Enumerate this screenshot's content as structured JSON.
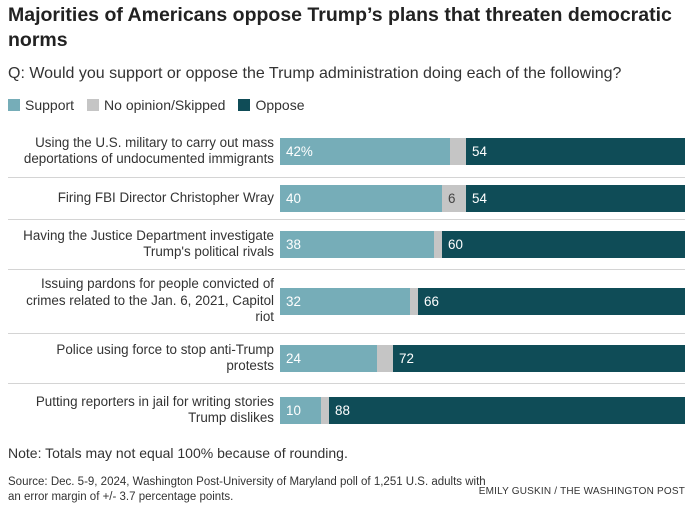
{
  "title": "Majorities of Americans oppose Trump’s plans that threaten democratic norms",
  "question": "Q: Would you support or oppose the Trump administration doing each of the following?",
  "colors": {
    "support": "#76adb8",
    "no_opinion": "#c5c5c5",
    "oppose": "#0f4c57"
  },
  "note": "Note: Totals may not equal 100% because of rounding.",
  "source": "Source: Dec. 5-9, 2024, Washington Post-University of Maryland poll of 1,251 U.S. adults with an error margin of +/- 3.7 percentage points.",
  "credit": "EMILY GUSKIN / THE WASHINGTON POST",
  "chart_data": {
    "type": "bar",
    "orientation": "horizontal",
    "stacked": true,
    "xlim": [
      0,
      100
    ],
    "legend": {
      "position": "top-left"
    },
    "series": [
      {
        "name": "Support",
        "color": "#76adb8",
        "values": [
          42,
          40,
          38,
          32,
          24,
          10
        ],
        "labels": [
          "42%",
          "40",
          "38",
          "32",
          "24",
          "10"
        ]
      },
      {
        "name": "No opinion/Skipped",
        "color": "#c5c5c5",
        "values": [
          4,
          6,
          2,
          2,
          4,
          2
        ],
        "labels": [
          "",
          "6",
          "",
          "",
          "",
          ""
        ]
      },
      {
        "name": "Oppose",
        "color": "#0f4c57",
        "values": [
          54,
          54,
          60,
          66,
          72,
          88
        ],
        "labels": [
          "54",
          "54",
          "60",
          "66",
          "72",
          "88"
        ]
      }
    ],
    "categories": [
      "Using the U.S. military to carry out mass deportations of undocumented immigrants",
      "Firing FBI Director Christopher Wray",
      "Having the Justice Department investigate Trump's political rivals",
      "Issuing pardons for people convicted of crimes related to the Jan. 6, 2021, Capitol riot",
      "Police using force to stop anti-Trump protests",
      "Putting reporters in jail for writing stories Trump dislikes"
    ]
  }
}
